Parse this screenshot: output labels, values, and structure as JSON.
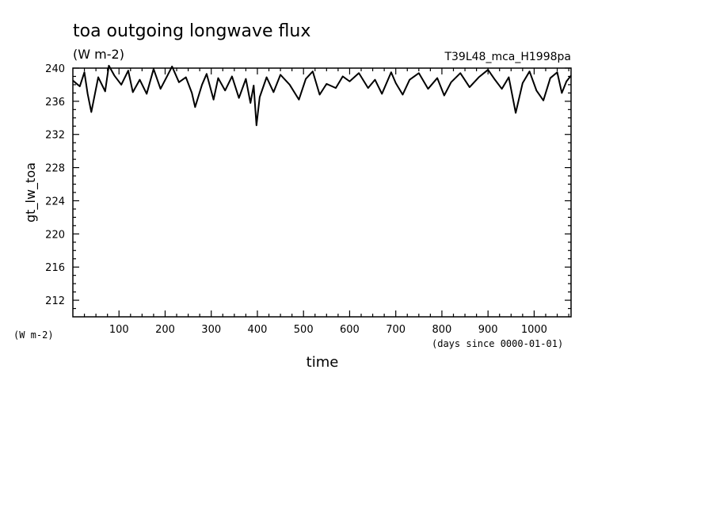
{
  "chart_data": {
    "type": "line",
    "title": "toa outgoing longwave flux",
    "units": "(W m-2)",
    "experiment": "T39L48_mca_H1998pa",
    "xlabel": "time",
    "xunits": "(days since 0000-01-01)",
    "ylabel": "gt_lw_toa",
    "yunits": "(W m-2)",
    "xlim": [
      0,
      1080
    ],
    "ylim": [
      210,
      240
    ],
    "xticks": [
      100,
      200,
      300,
      400,
      500,
      600,
      700,
      800,
      900,
      1000
    ],
    "yticks": [
      212,
      216,
      220,
      224,
      228,
      232,
      236,
      240
    ],
    "grid": false,
    "series": [
      {
        "x": [
          0,
          15,
          25,
          32,
          40,
          55,
          70,
          78,
          90,
          105,
          120,
          130,
          145,
          160,
          175,
          190,
          205,
          215,
          230,
          245,
          258,
          265,
          280,
          290,
          305,
          315,
          330,
          345,
          360,
          375,
          385,
          392,
          398,
          405,
          420,
          435,
          450,
          470,
          490,
          505,
          520,
          535,
          550,
          570,
          585,
          600,
          620,
          640,
          655,
          670,
          690,
          700,
          715,
          730,
          750,
          770,
          790,
          805,
          820,
          840,
          860,
          880,
          900,
          915,
          930,
          945,
          960,
          975,
          990,
          1005,
          1020,
          1035,
          1050,
          1060,
          1070,
          1080
        ],
        "y": [
          238.5,
          237.8,
          239.5,
          236.9,
          234.7,
          238.9,
          237.2,
          240.3,
          239.1,
          238.0,
          239.7,
          237.1,
          238.6,
          236.9,
          239.9,
          237.5,
          239.1,
          240.2,
          238.3,
          238.9,
          237.0,
          235.3,
          238.0,
          239.3,
          236.2,
          238.8,
          237.3,
          239.0,
          236.4,
          238.7,
          235.8,
          237.9,
          233.1,
          236.5,
          238.9,
          237.1,
          239.2,
          238.0,
          236.2,
          238.7,
          239.6,
          236.8,
          238.1,
          237.6,
          239.0,
          238.4,
          239.4,
          237.6,
          238.6,
          236.9,
          239.5,
          238.2,
          236.8,
          238.6,
          239.4,
          237.5,
          238.8,
          236.7,
          238.3,
          239.4,
          237.7,
          238.9,
          239.8,
          238.6,
          237.5,
          238.9,
          234.6,
          238.2,
          239.6,
          237.3,
          236.1,
          238.8,
          239.5,
          237.0,
          238.4,
          239.1
        ]
      }
    ]
  }
}
